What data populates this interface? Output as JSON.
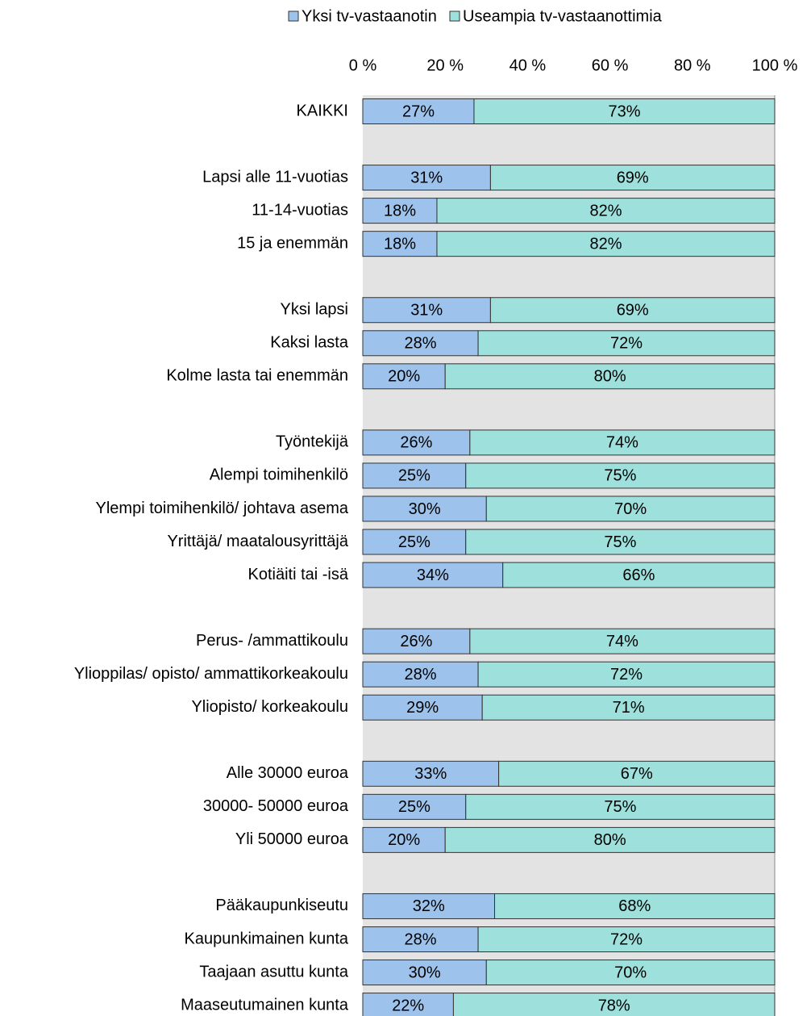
{
  "chart_data": {
    "type": "stacked-bar-horizontal",
    "categories": [
      "KAIKKI",
      null,
      "Lapsi alle 11-vuotias",
      "11-14-vuotias",
      "15 ja enemmän",
      null,
      "Yksi lapsi",
      "Kaksi lasta",
      "Kolme lasta tai enemmän",
      null,
      "Työntekijä",
      "Alempi toimihenkilö",
      "Ylempi toimihenkilö/ johtava asema",
      "Yrittäjä/ maatalousyrittäjä",
      "Kotiäiti tai -isä",
      null,
      "Perus- /ammattikoulu",
      "Ylioppilas/ opisto/ ammattikorkeakoulu",
      "Yliopisto/ korkeakoulu",
      null,
      "Alle 30000 euroa",
      "30000- 50000 euroa",
      "Yli 50000 euroa",
      null,
      "Pääkaupunkiseutu",
      "Kaupunkimainen kunta",
      "Taajaan asuttu kunta",
      "Maaseutumainen kunta"
    ],
    "series": [
      {
        "name": "Yksi tv-vastaanotin",
        "color": "#9dc3ec",
        "values": [
          27,
          null,
          31,
          18,
          18,
          null,
          31,
          28,
          20,
          null,
          26,
          25,
          30,
          25,
          34,
          null,
          26,
          28,
          29,
          null,
          33,
          25,
          20,
          null,
          32,
          28,
          30,
          22
        ],
        "value_labels": [
          "27%",
          null,
          "31%",
          "18%",
          "18%",
          null,
          "31%",
          "28%",
          "20%",
          null,
          "26%",
          "25%",
          "30%",
          "25%",
          "34%",
          null,
          "26%",
          "28%",
          "29%",
          null,
          "33%",
          "25%",
          "20%",
          null,
          "32%",
          "28%",
          "30%",
          "22%"
        ]
      },
      {
        "name": "Useampia tv-vastaanottimia",
        "color": "#9de0dc",
        "values": [
          73,
          null,
          69,
          82,
          82,
          null,
          69,
          72,
          80,
          null,
          74,
          75,
          70,
          75,
          66,
          null,
          74,
          72,
          71,
          null,
          67,
          75,
          80,
          null,
          68,
          72,
          70,
          78
        ],
        "value_labels": [
          "73%",
          null,
          "69%",
          "82%",
          "82%",
          null,
          "69%",
          "72%",
          "80%",
          null,
          "74%",
          "75%",
          "70%",
          "75%",
          "66%",
          null,
          "74%",
          "72%",
          "71%",
          null,
          "67%",
          "75%",
          "80%",
          null,
          "68%",
          "72%",
          "70%",
          "78%"
        ]
      }
    ],
    "xlim": [
      0,
      100
    ],
    "xticks": [
      {
        "value": 0,
        "label": "0 %"
      },
      {
        "value": 20,
        "label": "20 %"
      },
      {
        "value": 40,
        "label": "40 %"
      },
      {
        "value": 60,
        "label": "60 %"
      },
      {
        "value": 80,
        "label": "80 %"
      },
      {
        "value": 100,
        "label": "100 %"
      }
    ],
    "legend": "top"
  }
}
